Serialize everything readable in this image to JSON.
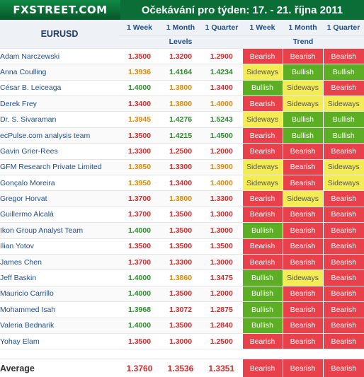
{
  "header": {
    "logo_text": "FXSTREET.COM",
    "title": "Očekávání pro týden: 17. - 21. října 2011"
  },
  "table": {
    "pair": "EURUSD",
    "columns": {
      "week": "1 Week",
      "month": "1 Month",
      "quarter": "1 Quarter"
    },
    "group_levels": "Levels",
    "group_trend": "Trend",
    "rows": [
      {
        "name": "Adam Narczewski",
        "levels": [
          "1.3500",
          "1.3200",
          "1.2900"
        ],
        "colors": [
          "red",
          "red",
          "red"
        ],
        "trend": [
          "Bearish",
          "Bearish",
          "Bearish"
        ]
      },
      {
        "name": "Anna Coulling",
        "levels": [
          "1.3936",
          "1.4164",
          "1.4234"
        ],
        "colors": [
          "amber",
          "green",
          "green"
        ],
        "trend": [
          "Sideways",
          "Bullish",
          "Bullish"
        ]
      },
      {
        "name": "César B. Leiceaga",
        "levels": [
          "1.4000",
          "1.3800",
          "1.3400"
        ],
        "colors": [
          "green",
          "amber",
          "red"
        ],
        "trend": [
          "Bullish",
          "Sideways",
          "Bearish"
        ]
      },
      {
        "name": "Derek Frey",
        "levels": [
          "1.3400",
          "1.3800",
          "1.4000"
        ],
        "colors": [
          "red",
          "amber",
          "amber"
        ],
        "trend": [
          "Bearish",
          "Sideways",
          "Sideways"
        ]
      },
      {
        "name": "Dr. S. Sivaraman",
        "levels": [
          "1.3945",
          "1.4276",
          "1.5243"
        ],
        "colors": [
          "amber",
          "green",
          "green"
        ],
        "trend": [
          "Sideways",
          "Bullish",
          "Bullish"
        ]
      },
      {
        "name": "ecPulse.com analysis team",
        "levels": [
          "1.3500",
          "1.4215",
          "1.4500"
        ],
        "colors": [
          "red",
          "green",
          "green"
        ],
        "trend": [
          "Bearish",
          "Bullish",
          "Bullish"
        ]
      },
      {
        "name": "Gavin Grier-Rees",
        "levels": [
          "1.3300",
          "1.2500",
          "1.2000"
        ],
        "colors": [
          "red",
          "red",
          "red"
        ],
        "trend": [
          "Bearish",
          "Bearish",
          "Bearish"
        ]
      },
      {
        "name": "GFM Research Private Limited",
        "levels": [
          "1.3850",
          "1.3300",
          "1.3900"
        ],
        "colors": [
          "amber",
          "red",
          "amber"
        ],
        "trend": [
          "Sideways",
          "Bearish",
          "Sideways"
        ]
      },
      {
        "name": "Gonçalo Moreira",
        "levels": [
          "1.3950",
          "1.3400",
          "1.4000"
        ],
        "colors": [
          "amber",
          "red",
          "amber"
        ],
        "trend": [
          "Sideways",
          "Bearish",
          "Sideways"
        ]
      },
      {
        "name": "Gregor Horvat",
        "levels": [
          "1.3700",
          "1.3800",
          "1.3300"
        ],
        "colors": [
          "red",
          "amber",
          "red"
        ],
        "trend": [
          "Bearish",
          "Sideways",
          "Bearish"
        ]
      },
      {
        "name": "Guillermo Alcalá",
        "levels": [
          "1.3700",
          "1.3500",
          "1.3000"
        ],
        "colors": [
          "red",
          "red",
          "red"
        ],
        "trend": [
          "Bearish",
          "Bearish",
          "Bearish"
        ]
      },
      {
        "name": "Ikon Group Analyst Team",
        "levels": [
          "1.4000",
          "1.3500",
          "1.3000"
        ],
        "colors": [
          "green",
          "red",
          "red"
        ],
        "trend": [
          "Bullish",
          "Bearish",
          "Bearish"
        ]
      },
      {
        "name": "Ilian Yotov",
        "levels": [
          "1.3500",
          "1.3500",
          "1.3500"
        ],
        "colors": [
          "red",
          "red",
          "red"
        ],
        "trend": [
          "Bearish",
          "Bearish",
          "Bearish"
        ]
      },
      {
        "name": "James Chen",
        "levels": [
          "1.3700",
          "1.3300",
          "1.3000"
        ],
        "colors": [
          "red",
          "red",
          "red"
        ],
        "trend": [
          "Bearish",
          "Bearish",
          "Bearish"
        ]
      },
      {
        "name": "Jeff Baskin",
        "levels": [
          "1.4000",
          "1.3860",
          "1.3475"
        ],
        "colors": [
          "green",
          "amber",
          "red"
        ],
        "trend": [
          "Bullish",
          "Sideways",
          "Bearish"
        ]
      },
      {
        "name": "Mauricio Carrillo",
        "levels": [
          "1.4000",
          "1.3500",
          "1.2000"
        ],
        "colors": [
          "green",
          "red",
          "red"
        ],
        "trend": [
          "Bullish",
          "Bearish",
          "Bearish"
        ]
      },
      {
        "name": "Mohammed Isah",
        "levels": [
          "1.3968",
          "1.3072",
          "1.2875"
        ],
        "colors": [
          "green",
          "red",
          "red"
        ],
        "trend": [
          "Bullish",
          "Bearish",
          "Bearish"
        ]
      },
      {
        "name": "Valeria Bednarik",
        "levels": [
          "1.4000",
          "1.3500",
          "1.2840"
        ],
        "colors": [
          "green",
          "red",
          "red"
        ],
        "trend": [
          "Bullish",
          "Bearish",
          "Bearish"
        ]
      },
      {
        "name": "Yohay Elam",
        "levels": [
          "1.3500",
          "1.3000",
          "1.2500"
        ],
        "colors": [
          "red",
          "red",
          "red"
        ],
        "trend": [
          "Bearish",
          "Bearish",
          "Bearish"
        ]
      }
    ],
    "average": {
      "label": "Average",
      "levels": [
        "1.3760",
        "1.3536",
        "1.3351"
      ],
      "colors": [
        "red",
        "red",
        "red"
      ],
      "trend": [
        "Bearish",
        "Bearish",
        "Bearish"
      ]
    }
  }
}
